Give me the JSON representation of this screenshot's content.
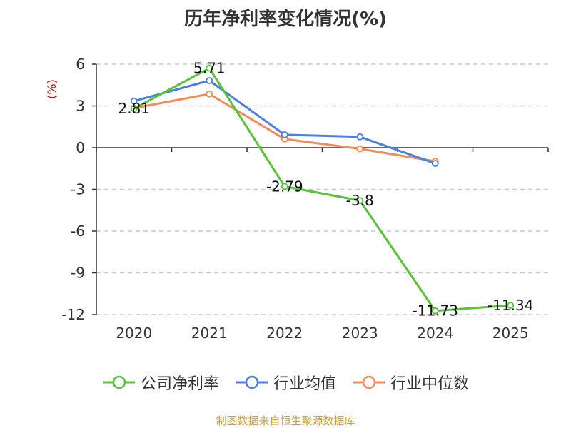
{
  "chart_data": {
    "type": "line",
    "title": "历年净利率变化情况(%)",
    "ylabel": "(%)",
    "xlabel": "",
    "categories": [
      "2020",
      "2021",
      "2022",
      "2023",
      "2024",
      "2025"
    ],
    "ylim": [
      -12,
      6
    ],
    "yticks": [
      6,
      3,
      0,
      -3,
      -6,
      -9,
      -12
    ],
    "grid": true,
    "legend_position": "bottom",
    "series": [
      {
        "name": "公司净利率",
        "color": "#5ac13a",
        "values": [
          2.81,
          5.71,
          -2.79,
          -3.8,
          -11.73,
          -11.34
        ],
        "labels": [
          "2.81",
          "5.71",
          "-2.79",
          "-3.8",
          "-11.73",
          "-11.34"
        ]
      },
      {
        "name": "行业均值",
        "color": "#4d7fdc",
        "values": [
          3.35,
          4.82,
          0.93,
          0.78,
          -1.13,
          null
        ]
      },
      {
        "name": "行业中位数",
        "color": "#f28c58",
        "values": [
          2.84,
          3.86,
          0.62,
          -0.08,
          -0.98,
          null
        ]
      }
    ],
    "source": "制图数据来自恒生聚源数据库"
  },
  "colors": {
    "title": "#333333",
    "axis": "#333333",
    "grid": "#cccccc",
    "ylabel": "#cc0000",
    "source": "#c8a040"
  }
}
